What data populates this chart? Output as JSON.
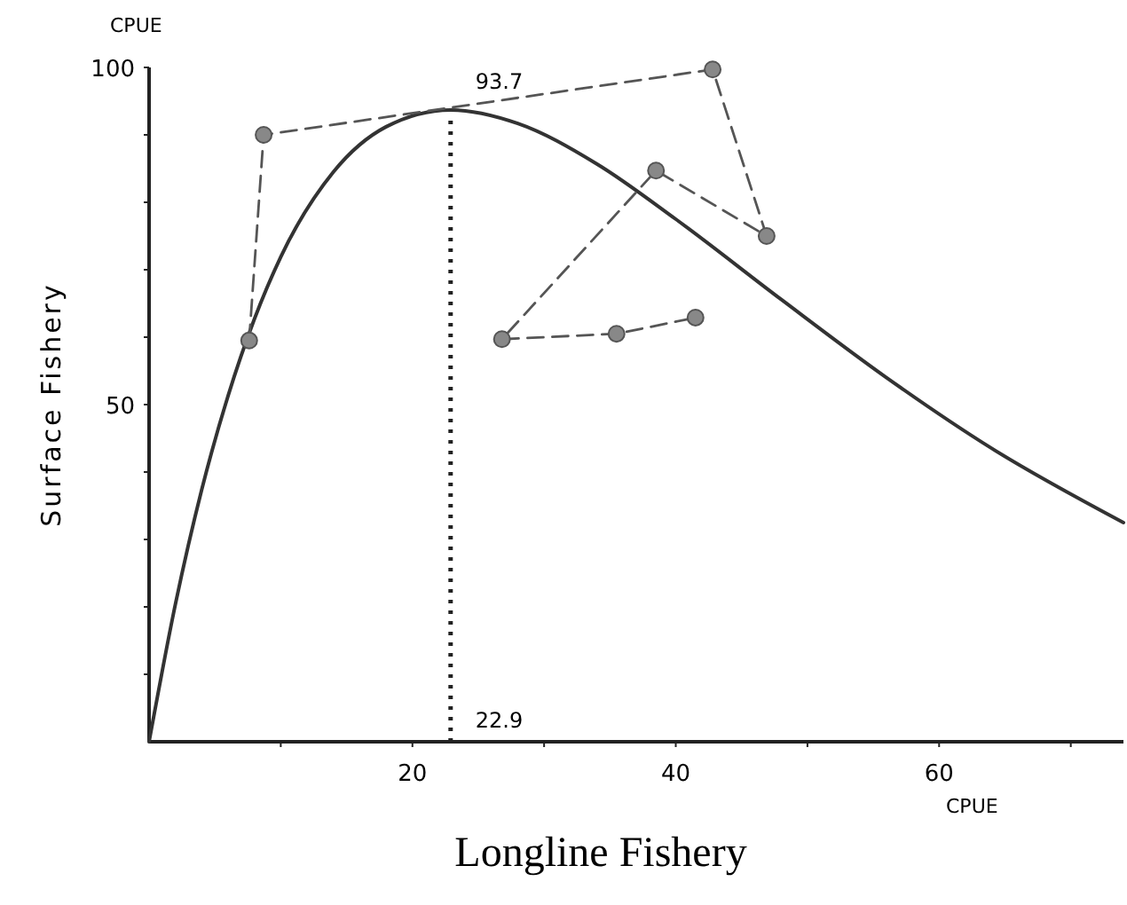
{
  "chart_data": {
    "type": "line",
    "xlabel": "Longline Fishery",
    "ylabel": "Surface Fishery",
    "xlim": [
      0,
      74
    ],
    "ylim": [
      0,
      100
    ],
    "xticks": [
      {
        "value": 10,
        "label": null
      },
      20,
      {
        "value": 30,
        "label": null
      },
      40,
      {
        "value": 50,
        "label": null
      },
      60,
      {
        "value": 70,
        "label": null
      }
    ],
    "yticks": [
      {
        "value": 10,
        "label": null
      },
      {
        "value": 20,
        "label": null
      },
      {
        "value": 30,
        "label": null
      },
      {
        "value": 40,
        "label": null
      },
      50,
      {
        "value": 60,
        "label": null
      },
      {
        "value": 70,
        "label": null
      },
      {
        "value": 80,
        "label": null
      },
      {
        "value": 90,
        "label": null
      },
      100
    ],
    "grid": false,
    "series": [
      {
        "color": "#333333",
        "marker": "none",
        "line_style": "solid",
        "x": [
          0,
          2,
          4,
          6,
          8,
          10,
          14,
          18,
          22.9,
          28,
          34,
          40,
          48,
          56,
          64,
          74
        ],
        "values": [
          0,
          20.4,
          37.4,
          51.3,
          62.7,
          71.9,
          84.5,
          91.2,
          93.7,
          91.7,
          85.7,
          77.5,
          65.6,
          54,
          43.5,
          32.5
        ]
      },
      {
        "color": "#555555",
        "marker": "circle",
        "line_style": "dashed",
        "x": [
          7.6,
          8.7,
          42.8,
          46.9,
          38.5,
          26.8,
          35.5,
          41.5
        ],
        "values": [
          59.5,
          90,
          99.7,
          75,
          84.7,
          59.7,
          60.5,
          62.9
        ]
      }
    ],
    "ref_lines": [
      {
        "axis": "x",
        "value": 22.9,
        "line_style": "dotted",
        "color": "#222222"
      }
    ],
    "annotations": [
      "CPUE",
      "CPUE",
      {
        "text": "93.7",
        "x": 22.9,
        "y": 93.7
      },
      {
        "text": "22.9",
        "x": 22.9,
        "y": 0
      }
    ]
  }
}
